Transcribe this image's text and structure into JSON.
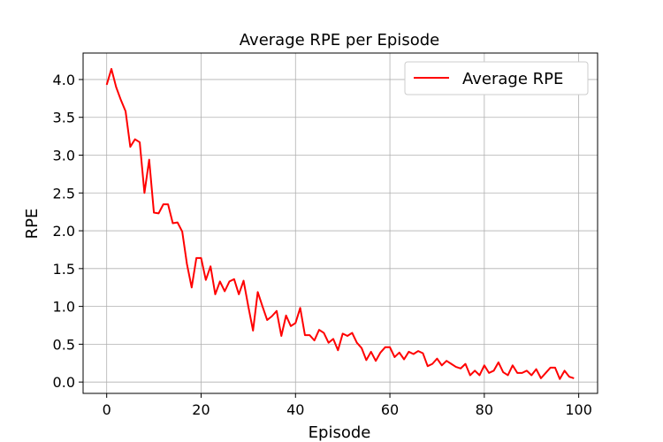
{
  "chart_data": {
    "type": "line",
    "title": "Average RPE per Episode",
    "xlabel": "Episode",
    "ylabel": "RPE",
    "xlim": [
      -5,
      104
    ],
    "ylim": [
      -0.15,
      4.35
    ],
    "xticks": [
      0,
      20,
      40,
      60,
      80,
      100
    ],
    "yticks": [
      0.0,
      0.5,
      1.0,
      1.5,
      2.0,
      2.5,
      3.0,
      3.5,
      4.0
    ],
    "ytick_labels": [
      "0.0",
      "0.5",
      "1.0",
      "1.5",
      "2.0",
      "2.5",
      "3.0",
      "3.5",
      "4.0"
    ],
    "xtick_labels": [
      "0",
      "20",
      "40",
      "60",
      "80",
      "100"
    ],
    "grid": true,
    "legend": {
      "position": "top-right",
      "entries": [
        "Average RPE"
      ]
    },
    "series": [
      {
        "name": "Average RPE",
        "color": "#ff0000",
        "x": [
          0,
          1,
          2,
          3,
          4,
          5,
          6,
          7,
          8,
          9,
          10,
          11,
          12,
          13,
          14,
          15,
          16,
          17,
          18,
          19,
          20,
          21,
          22,
          23,
          24,
          25,
          26,
          27,
          28,
          29,
          30,
          31,
          32,
          33,
          34,
          35,
          36,
          37,
          38,
          39,
          40,
          41,
          42,
          43,
          44,
          45,
          46,
          47,
          48,
          49,
          50,
          51,
          52,
          53,
          54,
          55,
          56,
          57,
          58,
          59,
          60,
          61,
          62,
          63,
          64,
          65,
          66,
          67,
          68,
          69,
          70,
          71,
          72,
          73,
          74,
          75,
          76,
          77,
          78,
          79,
          80,
          81,
          82,
          83,
          84,
          85,
          86,
          87,
          88,
          89,
          90,
          91,
          92,
          93,
          94,
          95,
          96,
          97,
          98,
          99
        ],
        "values": [
          3.93,
          4.14,
          3.9,
          3.73,
          3.58,
          3.11,
          3.21,
          3.17,
          2.5,
          2.94,
          2.24,
          2.23,
          2.35,
          2.35,
          2.1,
          2.11,
          1.99,
          1.56,
          1.25,
          1.64,
          1.64,
          1.35,
          1.53,
          1.16,
          1.33,
          1.2,
          1.33,
          1.36,
          1.16,
          1.34,
          1.0,
          0.68,
          1.19,
          1.0,
          0.82,
          0.87,
          0.94,
          0.61,
          0.88,
          0.74,
          0.78,
          0.98,
          0.62,
          0.62,
          0.55,
          0.69,
          0.65,
          0.52,
          0.57,
          0.42,
          0.64,
          0.61,
          0.65,
          0.52,
          0.45,
          0.29,
          0.4,
          0.28,
          0.39,
          0.46,
          0.46,
          0.33,
          0.39,
          0.3,
          0.4,
          0.37,
          0.41,
          0.38,
          0.21,
          0.24,
          0.31,
          0.22,
          0.28,
          0.24,
          0.2,
          0.18,
          0.24,
          0.09,
          0.15,
          0.09,
          0.22,
          0.12,
          0.15,
          0.26,
          0.13,
          0.09,
          0.22,
          0.12,
          0.12,
          0.15,
          0.09,
          0.17,
          0.05,
          0.12,
          0.19,
          0.19,
          0.04,
          0.15,
          0.07,
          0.05
        ]
      }
    ]
  }
}
